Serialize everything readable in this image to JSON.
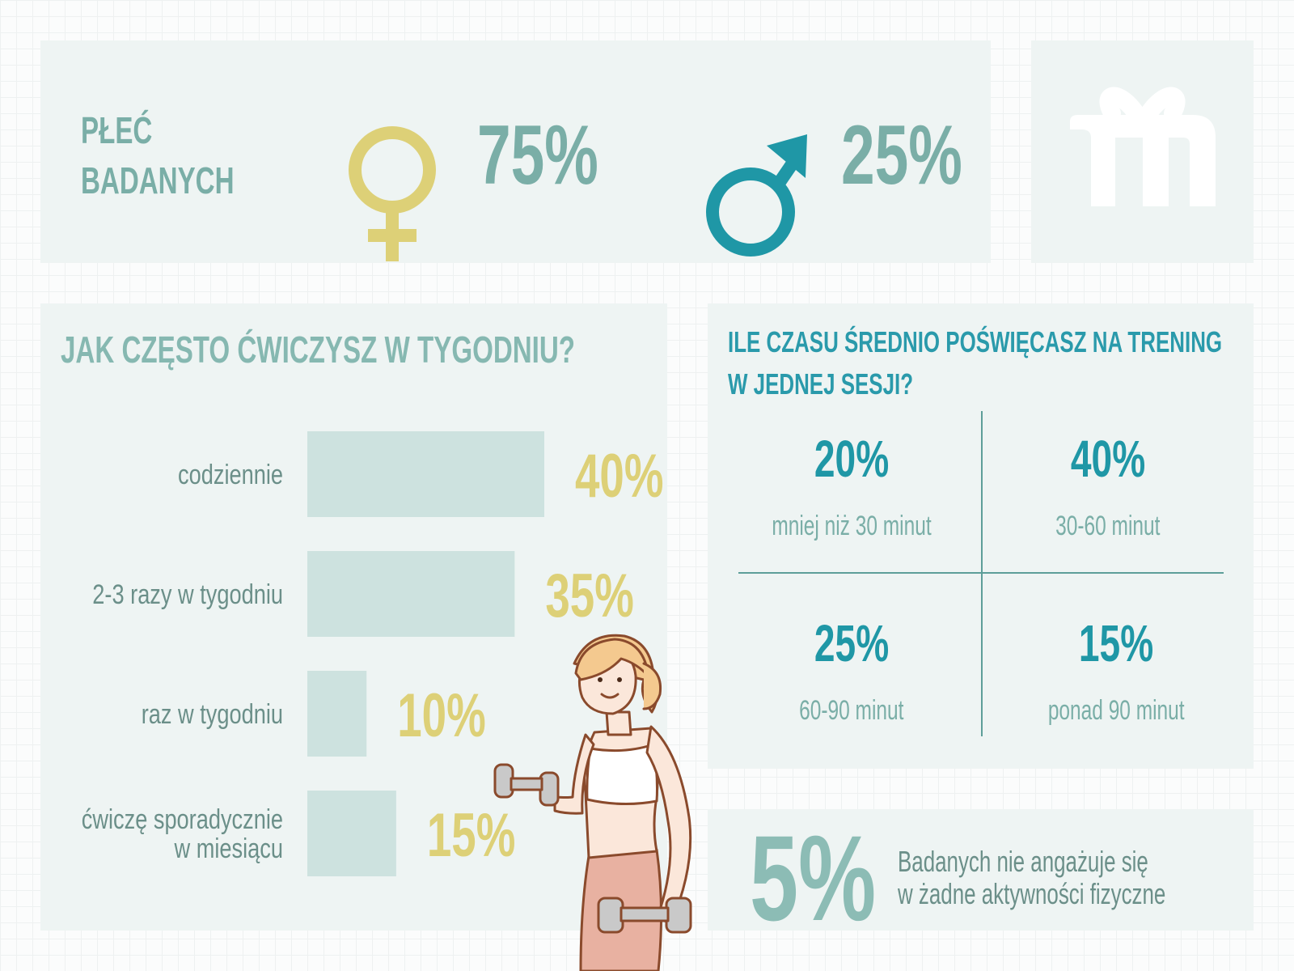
{
  "colors": {
    "panel": "#eef4f3",
    "bar": "#cde2df",
    "yellow_accent": "#ddd077",
    "teal_text": "#7aaea7",
    "dark_teal": "#1f97a6",
    "female_icon": "#ddd077",
    "male_icon": "#1f97a6"
  },
  "gender": {
    "title_line1": "PŁEĆ",
    "title_line2": "BADANYCH",
    "female_pct": "75%",
    "male_pct": "25%",
    "female_icon": "female-symbol-icon",
    "male_icon": "male-symbol-icon"
  },
  "logo": {
    "icon": "gift-logo-icon"
  },
  "frequency": {
    "title": "JAK CZĘSTO ĆWICZYSZ W TYGODNIU?"
  },
  "time": {
    "title_line1": "ILE CZASU ŚREDNIO POŚWIĘCASZ NA TRENING",
    "title_line2": "W JEDNEJ SESJI?",
    "cells": [
      {
        "pct": "20%",
        "label": "mniej niż 30 minut"
      },
      {
        "pct": "40%",
        "label": "30-60 minut"
      },
      {
        "pct": "25%",
        "label": "60-90 minut"
      },
      {
        "pct": "15%",
        "label": "ponad 90 minut"
      }
    ]
  },
  "inactive": {
    "pct": "5%",
    "line1": "Badanych nie angażuje się",
    "line2": "w żadne aktywności fizyczne"
  },
  "illustration": {
    "icon": "woman-with-dumbbells-icon"
  },
  "chart_data": [
    {
      "type": "bar",
      "orientation": "horizontal",
      "title": "JAK CZĘSTO ĆWICZYSZ W TYGODNIU?",
      "categories": [
        [
          "codziennie"
        ],
        [
          "2-3 razy w tygodniu"
        ],
        [
          "raz w tygodniu"
        ],
        [
          "ćwiczę sporadycznie",
          "w miesiącu"
        ]
      ],
      "values": [
        40,
        35,
        10,
        15
      ],
      "value_labels": [
        "40%",
        "35%",
        "10%",
        "15%"
      ],
      "xlim": [
        0,
        40
      ]
    },
    {
      "type": "table",
      "title": "ILE CZASU ŚREDNIO POŚWIĘCASZ NA TRENING W JEDNEJ SESJI?",
      "categories": [
        "mniej niż 30 minut",
        "30-60 minut",
        "60-90 minut",
        "ponad 90 minut"
      ],
      "values": [
        20,
        40,
        25,
        15
      ]
    },
    {
      "type": "pie",
      "title": "PŁEĆ BADANYCH",
      "categories": [
        "female",
        "male"
      ],
      "values": [
        75,
        25
      ]
    }
  ]
}
